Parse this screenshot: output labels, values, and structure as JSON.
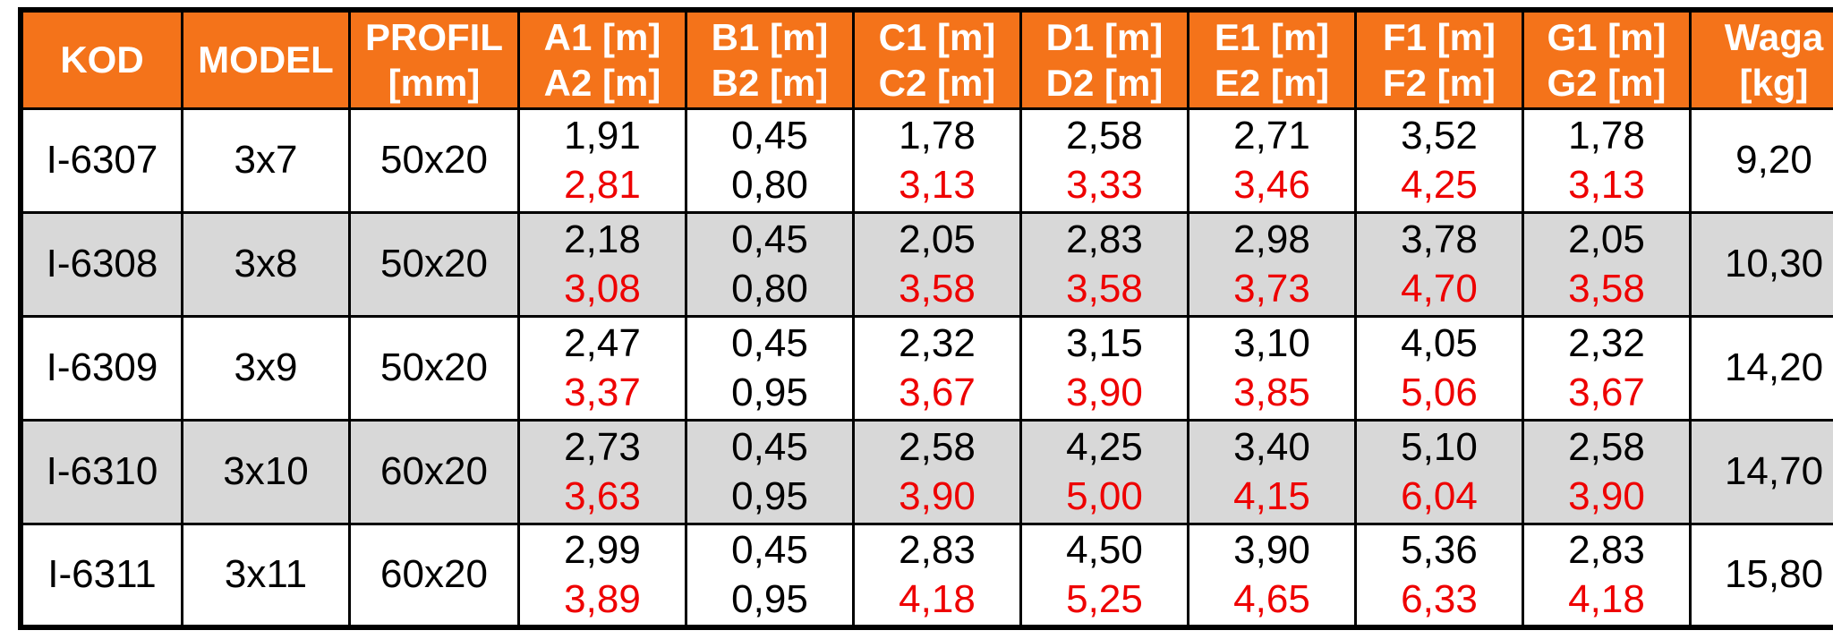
{
  "table": {
    "colors": {
      "header_bg": "#f4731a",
      "header_text": "#ffffff",
      "row_bg": "#ffffff",
      "row_alt_bg": "#d8d8d8",
      "value_primary": "#000000",
      "value_secondary_red": "#ee0000",
      "border": "#000000"
    },
    "columns": [
      {
        "id": "kod",
        "line1": "KOD",
        "line2": ""
      },
      {
        "id": "model",
        "line1": "MODEL",
        "line2": ""
      },
      {
        "id": "profil",
        "line1": "PROFIL",
        "line2": "[mm]"
      },
      {
        "id": "a",
        "line1": "A1 [m]",
        "line2": "A2 [m]"
      },
      {
        "id": "b",
        "line1": "B1 [m]",
        "line2": "B2 [m]"
      },
      {
        "id": "c",
        "line1": "C1 [m]",
        "line2": "C2 [m]"
      },
      {
        "id": "d",
        "line1": "D1 [m]",
        "line2": "D2 [m]"
      },
      {
        "id": "e",
        "line1": "E1 [m]",
        "line2": "E2 [m]"
      },
      {
        "id": "f",
        "line1": "F1 [m]",
        "line2": "F2 [m]"
      },
      {
        "id": "g",
        "line1": "G1 [m]",
        "line2": "G2 [m]"
      },
      {
        "id": "waga",
        "line1": "Waga",
        "line2": "[kg]"
      }
    ],
    "rows": [
      {
        "kod": "I-6307",
        "model": "3x7",
        "profil": "50x20",
        "a": {
          "v1": "1,91",
          "v2": "2,81",
          "v2_red": true
        },
        "b": {
          "v1": "0,45",
          "v2": "0,80",
          "v2_red": false
        },
        "c": {
          "v1": "1,78",
          "v2": "3,13",
          "v2_red": true
        },
        "d": {
          "v1": "2,58",
          "v2": "3,33",
          "v2_red": true
        },
        "e": {
          "v1": "2,71",
          "v2": "3,46",
          "v2_red": true
        },
        "f": {
          "v1": "3,52",
          "v2": "4,25",
          "v2_red": true
        },
        "g": {
          "v1": "1,78",
          "v2": "3,13",
          "v2_red": true
        },
        "waga": "9,20",
        "shaded": false
      },
      {
        "kod": "I-6308",
        "model": "3x8",
        "profil": "50x20",
        "a": {
          "v1": "2,18",
          "v2": "3,08",
          "v2_red": true
        },
        "b": {
          "v1": "0,45",
          "v2": "0,80",
          "v2_red": false
        },
        "c": {
          "v1": "2,05",
          "v2": "3,58",
          "v2_red": true
        },
        "d": {
          "v1": "2,83",
          "v2": "3,58",
          "v2_red": true
        },
        "e": {
          "v1": "2,98",
          "v2": "3,73",
          "v2_red": true
        },
        "f": {
          "v1": "3,78",
          "v2": "4,70",
          "v2_red": true
        },
        "g": {
          "v1": "2,05",
          "v2": "3,58",
          "v2_red": true
        },
        "waga": "10,30",
        "shaded": true
      },
      {
        "kod": "I-6309",
        "model": "3x9",
        "profil": "50x20",
        "a": {
          "v1": "2,47",
          "v2": "3,37",
          "v2_red": true
        },
        "b": {
          "v1": "0,45",
          "v2": "0,95",
          "v2_red": false
        },
        "c": {
          "v1": "2,32",
          "v2": "3,67",
          "v2_red": true
        },
        "d": {
          "v1": "3,15",
          "v2": "3,90",
          "v2_red": true
        },
        "e": {
          "v1": "3,10",
          "v2": "3,85",
          "v2_red": true
        },
        "f": {
          "v1": "4,05",
          "v2": "5,06",
          "v2_red": true
        },
        "g": {
          "v1": "2,32",
          "v2": "3,67",
          "v2_red": true
        },
        "waga": "14,20",
        "shaded": false
      },
      {
        "kod": "I-6310",
        "model": "3x10",
        "profil": "60x20",
        "a": {
          "v1": "2,73",
          "v2": "3,63",
          "v2_red": true
        },
        "b": {
          "v1": "0,45",
          "v2": "0,95",
          "v2_red": false
        },
        "c": {
          "v1": "2,58",
          "v2": "3,90",
          "v2_red": true
        },
        "d": {
          "v1": "4,25",
          "v2": "5,00",
          "v2_red": true
        },
        "e": {
          "v1": "3,40",
          "v2": "4,15",
          "v2_red": true
        },
        "f": {
          "v1": "5,10",
          "v2": "6,04",
          "v2_red": true
        },
        "g": {
          "v1": "2,58",
          "v2": "3,90",
          "v2_red": true
        },
        "waga": "14,70",
        "shaded": true
      },
      {
        "kod": "I-6311",
        "model": "3x11",
        "profil": "60x20",
        "a": {
          "v1": "2,99",
          "v2": "3,89",
          "v2_red": true
        },
        "b": {
          "v1": "0,45",
          "v2": "0,95",
          "v2_red": false
        },
        "c": {
          "v1": "2,83",
          "v2": "4,18",
          "v2_red": true
        },
        "d": {
          "v1": "4,50",
          "v2": "5,25",
          "v2_red": true
        },
        "e": {
          "v1": "3,90",
          "v2": "4,65",
          "v2_red": true
        },
        "f": {
          "v1": "5,36",
          "v2": "6,33",
          "v2_red": true
        },
        "g": {
          "v1": "2,83",
          "v2": "4,18",
          "v2_red": true
        },
        "waga": "15,80",
        "shaded": false
      }
    ]
  },
  "chart_data": {
    "type": "table",
    "title": "",
    "columns": [
      "KOD",
      "MODEL",
      "PROFIL [mm]",
      "A1 [m] / A2 [m]",
      "B1 [m] / B2 [m]",
      "C1 [m] / C2 [m]",
      "D1 [m] / D2 [m]",
      "E1 [m] / E2 [m]",
      "F1 [m] / F2 [m]",
      "G1 [m] / G2 [m]",
      "Waga [kg]"
    ],
    "rows": [
      [
        "I-6307",
        "3x7",
        "50x20",
        "1,91 / 2,81",
        "0,45 / 0,80",
        "1,78 / 3,13",
        "2,58 / 3,33",
        "2,71 / 3,46",
        "3,52 / 4,25",
        "1,78 / 3,13",
        "9,20"
      ],
      [
        "I-6308",
        "3x8",
        "50x20",
        "2,18 / 3,08",
        "0,45 / 0,80",
        "2,05 / 3,58",
        "2,83 / 3,58",
        "2,98 / 3,73",
        "3,78 / 4,70",
        "2,05 / 3,58",
        "10,30"
      ],
      [
        "I-6309",
        "3x9",
        "50x20",
        "2,47 / 3,37",
        "0,45 / 0,95",
        "2,32 / 3,67",
        "3,15 / 3,90",
        "3,10 / 3,85",
        "4,05 / 5,06",
        "2,32 / 3,67",
        "14,20"
      ],
      [
        "I-6310",
        "3x10",
        "60x20",
        "2,73 / 3,63",
        "0,45 / 0,95",
        "2,58 / 3,90",
        "4,25 / 5,00",
        "3,40 / 4,15",
        "5,10 / 6,04",
        "2,58 / 3,90",
        "14,70"
      ],
      [
        "I-6311",
        "3x11",
        "60x20",
        "2,99 / 3,89",
        "0,45 / 0,95",
        "2,83 / 4,18",
        "4,50 / 5,25",
        "3,90 / 4,65",
        "5,36 / 6,33",
        "2,83 / 4,18",
        "15,80"
      ]
    ]
  }
}
